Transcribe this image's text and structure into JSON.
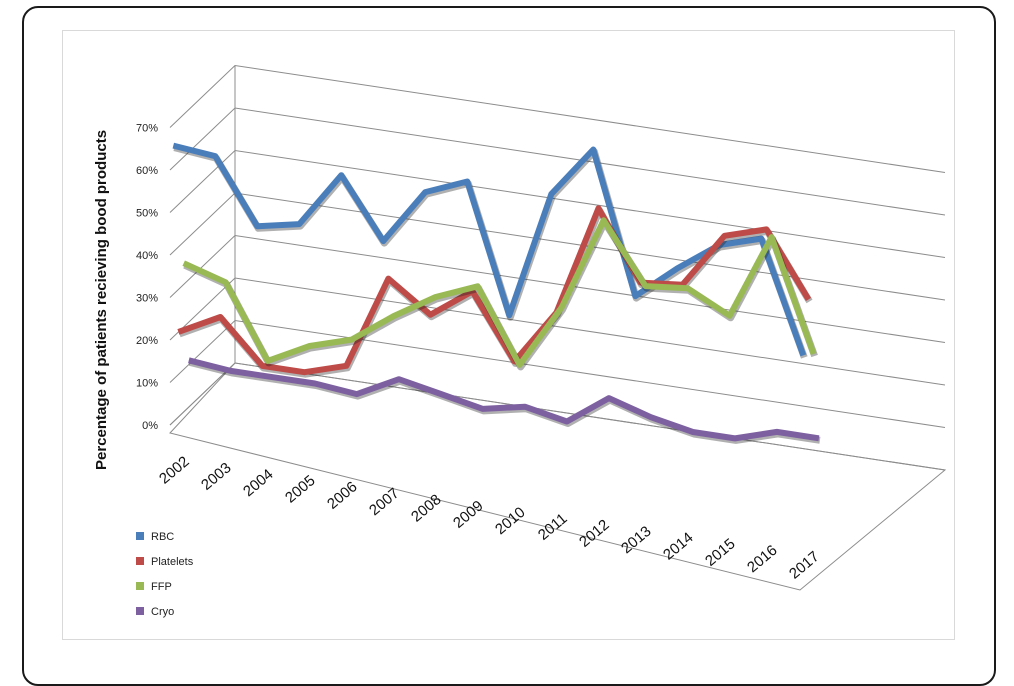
{
  "chart_data": {
    "type": "line",
    "style": "3d-line",
    "title": "",
    "xlabel": "",
    "ylabel": "Percentage of patients recieving bood products",
    "ylim": [
      0,
      70
    ],
    "yticks": [
      "0%",
      "10%",
      "20%",
      "30%",
      "40%",
      "50%",
      "60%",
      "70%"
    ],
    "categories": [
      "2002",
      "2003",
      "2004",
      "2005",
      "2006",
      "2007",
      "2008",
      "2009",
      "2010",
      "2011",
      "2012",
      "2013",
      "2014",
      "2015",
      "2016",
      "2017"
    ],
    "legend_position": "bottom-left",
    "series": [
      {
        "name": "RBC",
        "color": "#4a7ebb",
        "values": [
          65,
          64,
          49,
          51,
          64,
          50,
          63,
          67,
          37,
          67,
          79,
          46,
          54,
          61,
          64,
          38
        ]
      },
      {
        "name": "Platelets",
        "color": "#be4b48",
        "values": [
          20,
          25,
          15,
          15,
          18,
          40,
          33,
          40,
          25,
          38,
          64,
          48,
          49,
          62,
          65,
          50
        ]
      },
      {
        "name": "FFP",
        "color": "#98b954",
        "values": [
          35,
          32,
          15,
          20,
          23,
          30,
          36,
          40,
          23,
          38,
          60,
          46,
          47,
          42,
          62,
          36
        ]
      },
      {
        "name": "Cryo",
        "color": "#7d60a0",
        "values": [
          11,
          10,
          10,
          10,
          9,
          14,
          12,
          10,
          12,
          10,
          17,
          14,
          12,
          12,
          15,
          15
        ]
      }
    ]
  }
}
